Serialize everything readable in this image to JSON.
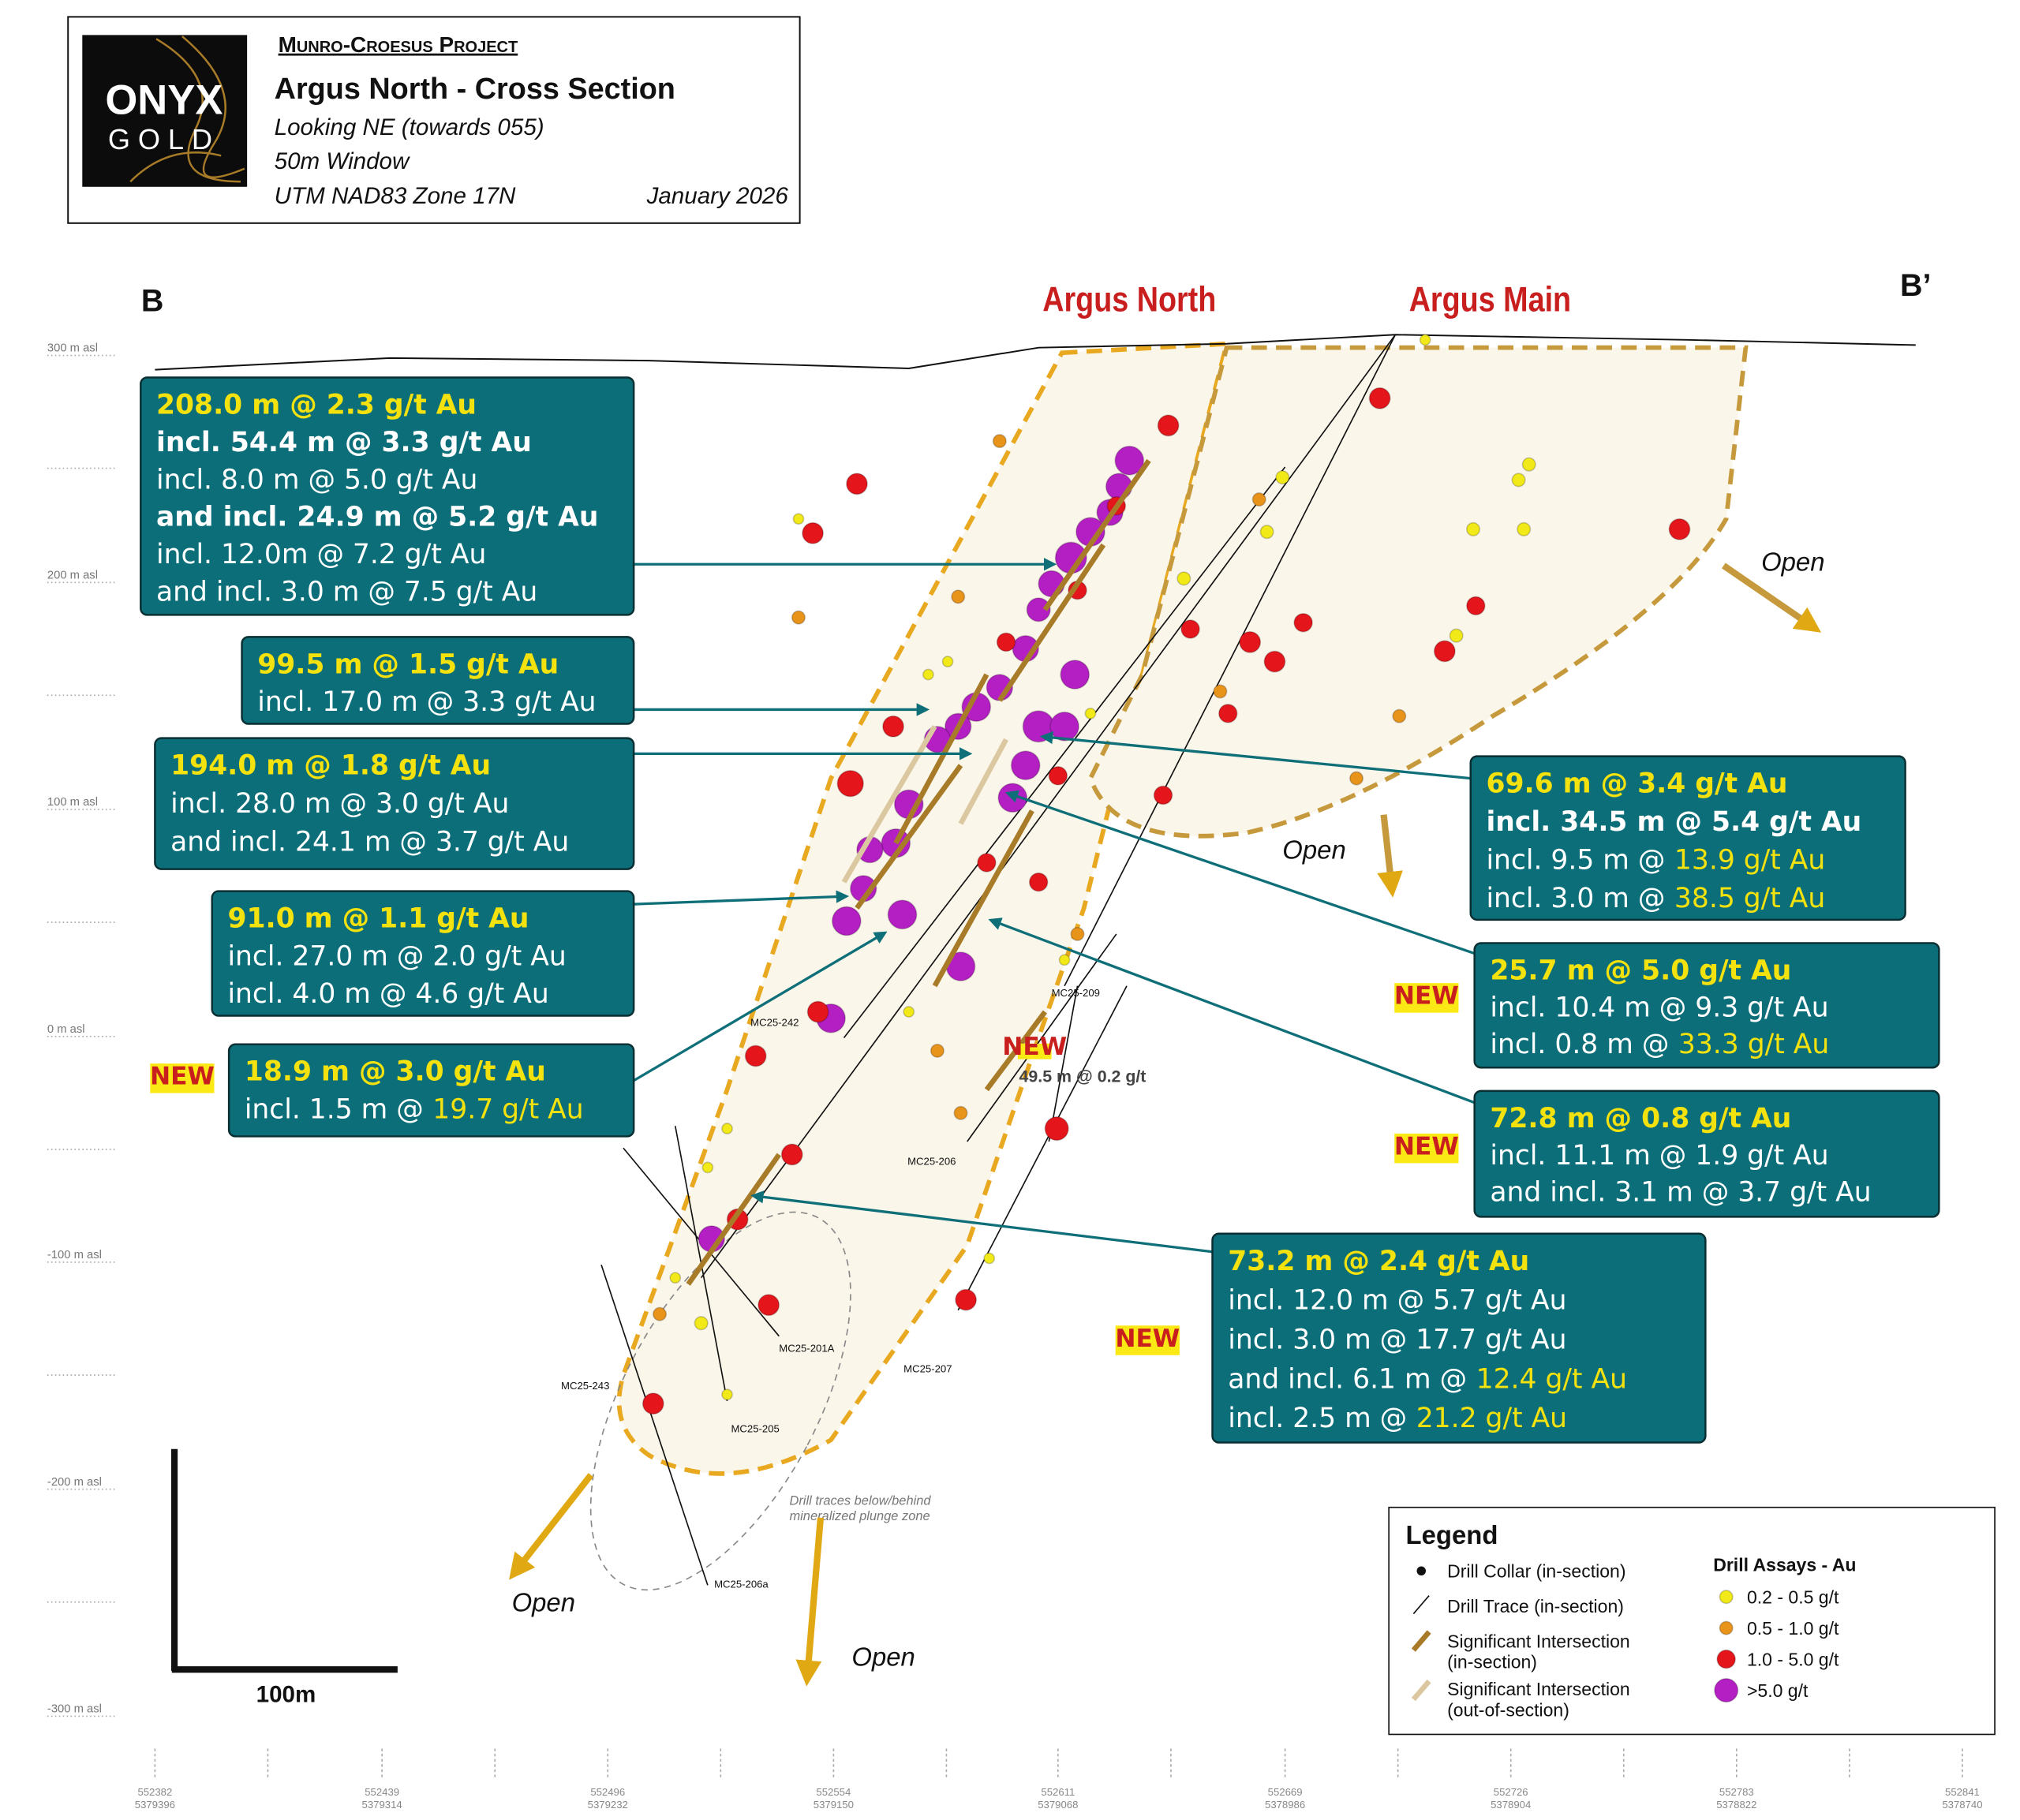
{
  "header": {
    "project": "Munro-Croesus Project",
    "title": "Argus North - Cross Section",
    "lines": [
      "Looking NE (towards 055)",
      "50m Window",
      "UTM NAD83 Zone 17N"
    ],
    "date": "January 2026",
    "logo": [
      "ONYX",
      "GOLD"
    ]
  },
  "section": {
    "left": "B",
    "right": "B’",
    "zones": [
      "Argus North",
      "Argus Main"
    ]
  },
  "elevations": [
    "300 m asl",
    "200 m asl",
    "100 m asl",
    "0 m asl",
    "-100 m asl",
    "-200 m asl",
    "-300 m asl"
  ],
  "eastings": [
    {
      "e": "552382",
      "n": "5379396"
    },
    {
      "e": "552439",
      "n": "5379314"
    },
    {
      "e": "552496",
      "n": "5379232"
    },
    {
      "e": "552554",
      "n": "5379150"
    },
    {
      "e": "552611",
      "n": "5379068"
    },
    {
      "e": "552669",
      "n": "5378986"
    },
    {
      "e": "552726",
      "n": "5378904"
    },
    {
      "e": "552783",
      "n": "5378822"
    },
    {
      "e": "552841",
      "n": "5378740"
    }
  ],
  "callouts": [
    {
      "lines": [
        {
          "text": "208.0 m @ 2.3 g/t Au",
          "style": "lead"
        },
        {
          "text": "incl. 54.4 m @ 3.3 g/t Au",
          "style": "bold"
        },
        {
          "text": "incl. 8.0 m @ 5.0 g/t Au"
        },
        {
          "text": "and incl. 24.9 m @ 5.2 g/t Au",
          "style": "bold"
        },
        {
          "text": "incl. 12.0m @ 7.2 g/t Au"
        },
        {
          "text": "and incl. 3.0 m @ 7.5 g/t Au"
        }
      ]
    },
    {
      "lines": [
        {
          "text": "99.5 m @ 1.5 g/t Au",
          "style": "lead"
        },
        {
          "text": "incl. 17.0 m @ 3.3 g/t Au"
        }
      ]
    },
    {
      "lines": [
        {
          "text": "194.0 m @ 1.8 g/t Au",
          "style": "lead"
        },
        {
          "text": "incl. 28.0 m @ 3.0 g/t Au"
        },
        {
          "text": "and incl. 24.1 m @ 3.7 g/t Au"
        }
      ]
    },
    {
      "lines": [
        {
          "text": "91.0 m @ 1.1 g/t Au",
          "style": "lead"
        },
        {
          "text": "incl. 27.0 m @ 2.0 g/t Au"
        },
        {
          "text": "incl. 4.0 m @ 4.6 g/t Au"
        }
      ]
    },
    {
      "lines": [
        {
          "text": "18.9 m @ 3.0 g/t Au",
          "style": "lead"
        },
        {
          "text": "incl. 1.5 m @",
          "highlight": "19.7 g/t Au"
        }
      ]
    },
    {
      "lines": [
        {
          "text": "69.6 m @ 3.4 g/t Au",
          "style": "lead"
        },
        {
          "text": "incl. 34.5 m @ 5.4 g/t Au",
          "style": "bold"
        },
        {
          "text": "incl. 9.5 m @",
          "highlight": "13.9 g/t Au"
        },
        {
          "text": "incl. 3.0 m @",
          "highlight": "38.5 g/t Au"
        }
      ]
    },
    {
      "lines": [
        {
          "text": "25.7 m @ 5.0 g/t Au",
          "style": "lead"
        },
        {
          "text": "incl. 10.4 m @ 9.3 g/t Au"
        },
        {
          "text": "incl. 0.8 m @",
          "highlight": "33.3 g/t Au"
        }
      ]
    },
    {
      "lines": [
        {
          "text": "72.8 m @ 0.8 g/t Au",
          "style": "lead"
        },
        {
          "text": "incl. 11.1 m @ 1.9 g/t Au"
        },
        {
          "text": "and incl. 3.1 m @ 3.7 g/t Au"
        }
      ]
    },
    {
      "lines": [
        {
          "text": "73.2 m @ 2.4 g/t Au",
          "style": "lead"
        },
        {
          "text": "incl. 12.0 m @ 5.7 g/t Au"
        },
        {
          "text": "incl. 3.0 m @ 17.7 g/t Au"
        },
        {
          "text": "and incl. 6.1 m @",
          "highlight": "12.4 g/t Au"
        },
        {
          "text": "incl. 2.5 m @",
          "highlight": "21.2 g/t Au"
        }
      ]
    }
  ],
  "new_badges": [
    "NEW",
    "NEW",
    "NEW",
    "NEW",
    "NEW"
  ],
  "holes": [
    "MC25-242",
    "MC25-209",
    "MC25-206",
    "MC25-201A",
    "MC25-207",
    "MC25-243",
    "MC25-205",
    "MC25-206a"
  ],
  "annotations": {
    "small_intercept": "49.5 m @ 0.2 g/t",
    "plunge_note": [
      "Drill traces below/behind",
      "mineralized plunge zone"
    ],
    "open": [
      "Open",
      "Open",
      "Open",
      "Open"
    ]
  },
  "scale_bar": "100m",
  "legend": {
    "title": "Legend",
    "items": [
      "Drill Collar (in-section)",
      "Drill Trace (in-section)",
      [
        "Significant Intersection",
        "(in-section)"
      ],
      [
        "Significant Intersection",
        "(out-of-section)"
      ]
    ],
    "assay_title": "Drill Assays - Au",
    "assays": [
      "0.2 - 0.5 g/t",
      "0.5 - 1.0 g/t",
      "1.0 - 5.0 g/t",
      ">5.0 g/t"
    ]
  }
}
